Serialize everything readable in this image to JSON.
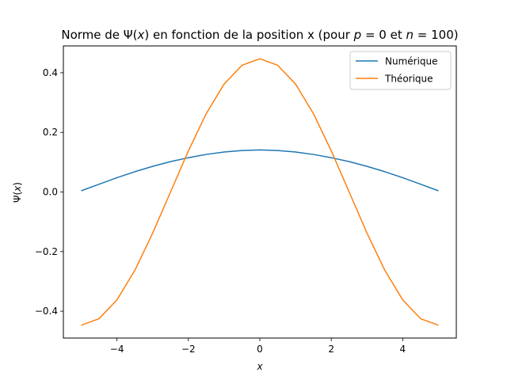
{
  "chart_data": {
    "type": "line",
    "title_parts": [
      "Norme de Ψ(",
      "x",
      ") en fonction de la position x (pour ",
      "p",
      " = 0 et ",
      "n",
      " = 100)"
    ],
    "xlabel": "x",
    "ylabel_parts": [
      "Ψ(",
      "x",
      ")"
    ],
    "xlim": [
      -5.5,
      5.5
    ],
    "ylim": [
      -0.49,
      0.49
    ],
    "xticks": [
      -4,
      -2,
      0,
      2,
      4
    ],
    "xtick_labels": [
      "−4",
      "−2",
      "0",
      "2",
      "4"
    ],
    "yticks": [
      -0.4,
      -0.2,
      0.0,
      0.2,
      0.4
    ],
    "ytick_labels": [
      "−0.4",
      "−0.2",
      "0.0",
      "0.2",
      "0.4"
    ],
    "grid": false,
    "legend_position": "top-right",
    "x": [
      -5,
      -4.5,
      -4,
      -3.5,
      -3,
      -2.5,
      -2,
      -1.5,
      -1,
      -0.5,
      0,
      0.5,
      1,
      1.5,
      2,
      2.5,
      3,
      3.5,
      4,
      4.5,
      5
    ],
    "series": [
      {
        "name": "Numérique",
        "color": "#1f77b4",
        "values": [
          0.004,
          0.026,
          0.048,
          0.068,
          0.086,
          0.102,
          0.115,
          0.126,
          0.134,
          0.139,
          0.141,
          0.139,
          0.134,
          0.126,
          0.115,
          0.102,
          0.086,
          0.068,
          0.048,
          0.026,
          0.004
        ]
      },
      {
        "name": "Théorique",
        "color": "#ff7f0e",
        "values": [
          -0.447,
          -0.425,
          -0.362,
          -0.263,
          -0.138,
          0.0,
          0.138,
          0.263,
          0.362,
          0.425,
          0.447,
          0.425,
          0.362,
          0.263,
          0.138,
          0.0,
          -0.138,
          -0.263,
          -0.362,
          -0.425,
          -0.447
        ]
      }
    ]
  }
}
